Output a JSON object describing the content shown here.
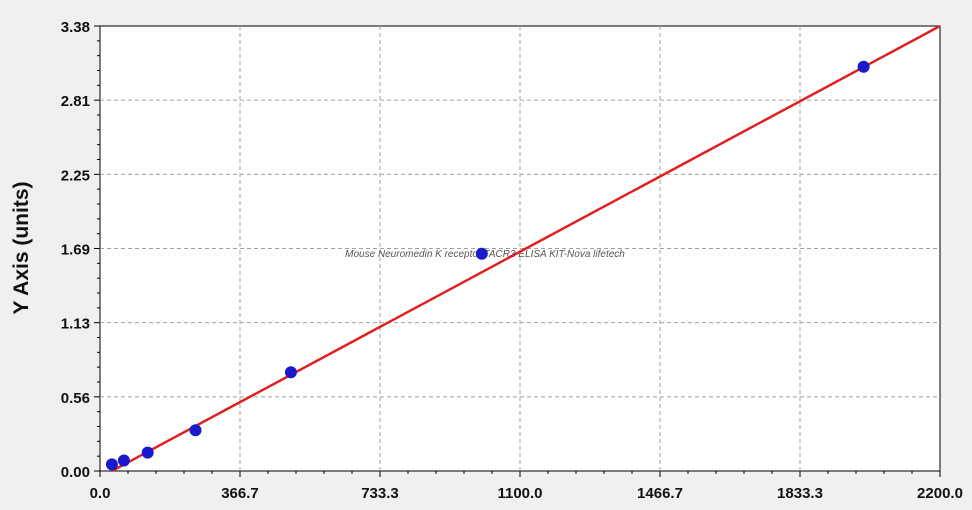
{
  "chart_data": {
    "type": "scatter",
    "ylabel": "Y Axis (units)",
    "xlabel": "",
    "xlim": [
      0,
      2200
    ],
    "ylim": [
      0,
      3.38
    ],
    "x_ticks": [
      "0.0",
      "366.7",
      "733.3",
      "1100.0",
      "1466.7",
      "1833.3",
      "2200.0"
    ],
    "y_ticks": [
      "0.00",
      "0.56",
      "1.13",
      "1.69",
      "2.25",
      "2.81",
      "3.38"
    ],
    "grid": true,
    "watermark": "Mouse Neuromedin K receptor,TACR3 ELISA KIT-Nova lifetech",
    "series": [
      {
        "kind": "points",
        "color": "#1a1acc",
        "x": [
          31.25,
          62.5,
          125,
          250,
          500,
          1000,
          2000
        ],
        "y": [
          0.05,
          0.08,
          0.14,
          0.31,
          0.75,
          1.65,
          3.07
        ]
      },
      {
        "kind": "fit-line",
        "color": "#e02020",
        "x": [
          31.25,
          2200
        ],
        "y": [
          0.0,
          3.38
        ]
      }
    ]
  }
}
